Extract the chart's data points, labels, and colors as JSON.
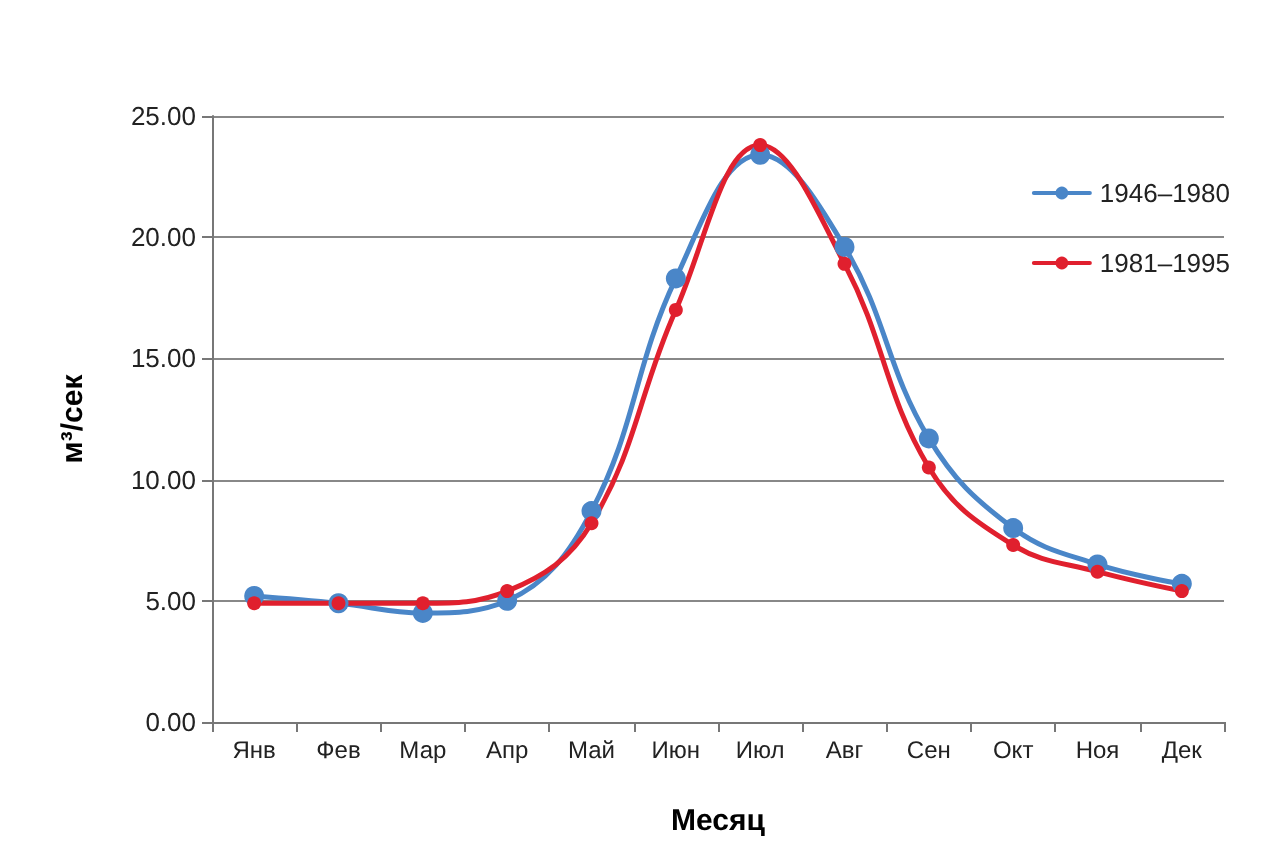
{
  "chart_data": {
    "type": "line",
    "xlabel": "Месяц",
    "ylabel": "м³/сек",
    "categories": [
      "Янв",
      "Фев",
      "Мар",
      "Апр",
      "Май",
      "Июн",
      "Июл",
      "Авг",
      "Сен",
      "Окт",
      "Ноя",
      "Дек"
    ],
    "series": [
      {
        "name": "1946–1980",
        "color": "#4a86c8",
        "values": [
          5.2,
          4.9,
          4.5,
          5.0,
          8.7,
          18.3,
          23.4,
          19.6,
          11.7,
          8.0,
          6.5,
          5.7
        ]
      },
      {
        "name": "1981–1995",
        "color": "#e0202e",
        "values": [
          4.9,
          4.9,
          4.9,
          5.4,
          8.2,
          17.0,
          23.8,
          18.9,
          10.5,
          7.3,
          6.2,
          5.4
        ]
      }
    ],
    "ylim": [
      0,
      25
    ],
    "yticks": [
      {
        "value": 0,
        "label": "0.00"
      },
      {
        "value": 5,
        "label": "5.00"
      },
      {
        "value": 10,
        "label": "10.00"
      },
      {
        "value": 15,
        "label": "15.00"
      },
      {
        "value": 20,
        "label": "20.00"
      },
      {
        "value": 25,
        "label": "25.00"
      }
    ],
    "grid": "y",
    "legend": "top right",
    "marker": "circle",
    "line_style": "solid"
  }
}
